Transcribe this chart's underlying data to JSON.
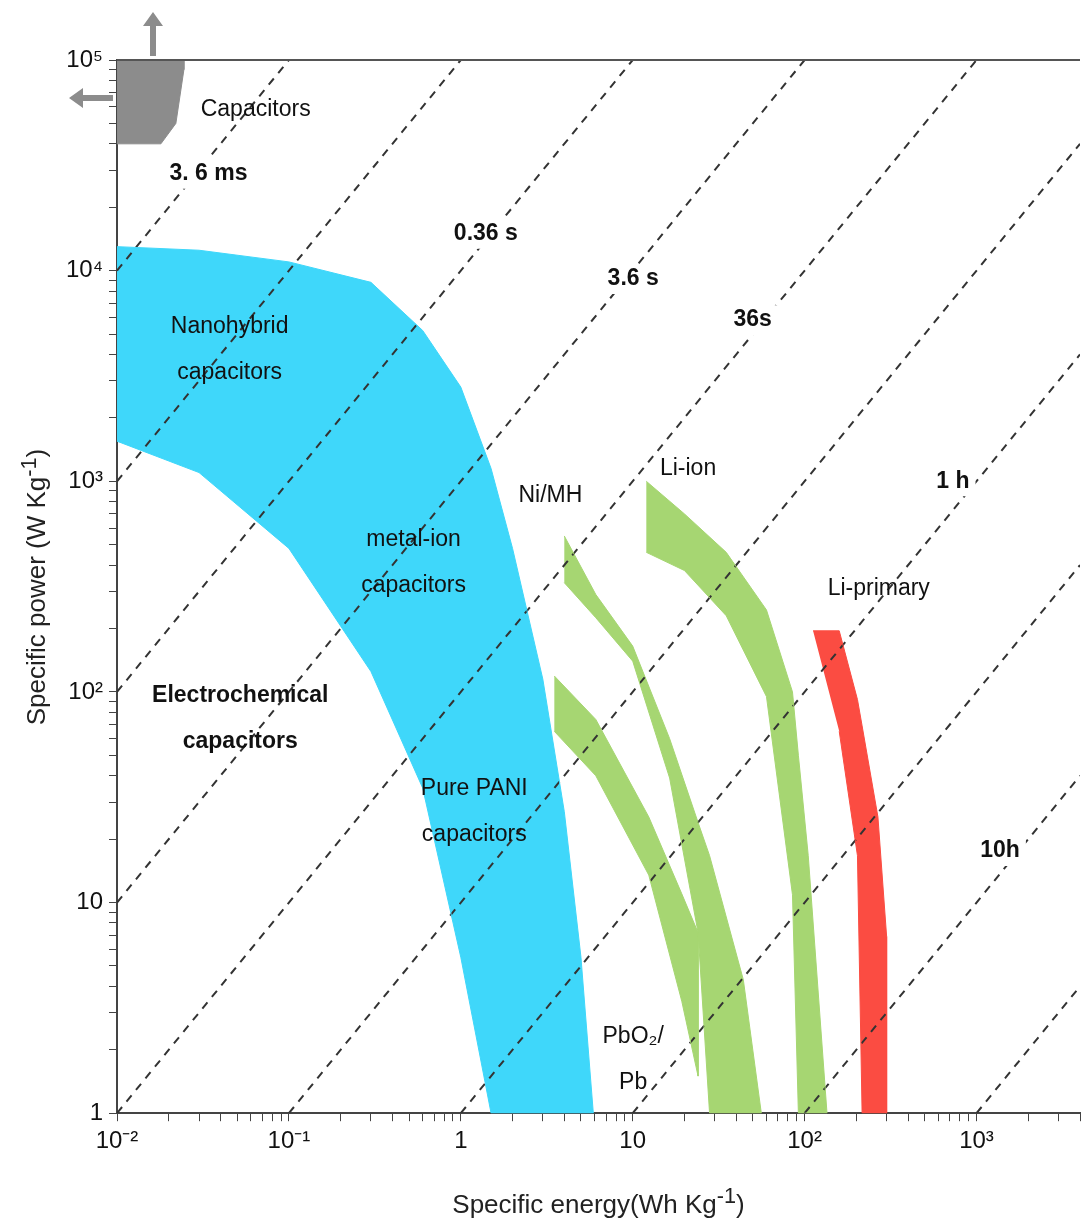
{
  "chart_data": {
    "type": "area",
    "log": "xy",
    "grid": false,
    "legend": false,
    "line_style": "dashed",
    "xlabel": "Specific energy(Wh Kg$^{-1}$)",
    "ylabel": "Specific  power (W Kg$^{-1}$)",
    "xlim": [
      0.01,
      4000
    ],
    "ylim": [
      1,
      100000
    ],
    "xticks": [
      {
        "value": 0.01,
        "label": "10⁻²"
      },
      {
        "value": 0.02,
        "label": null
      },
      {
        "value": 0.03,
        "label": null
      },
      {
        "value": 0.04,
        "label": null
      },
      {
        "value": 0.05,
        "label": null
      },
      {
        "value": 0.06,
        "label": null
      },
      {
        "value": 0.07,
        "label": null
      },
      {
        "value": 0.08,
        "label": null
      },
      {
        "value": 0.09,
        "label": null
      },
      {
        "value": 0.1,
        "label": "10⁻¹"
      },
      {
        "value": 0.2,
        "label": null
      },
      {
        "value": 0.3,
        "label": null
      },
      {
        "value": 0.4,
        "label": null
      },
      {
        "value": 0.5,
        "label": null
      },
      {
        "value": 0.6,
        "label": null
      },
      {
        "value": 0.7,
        "label": null
      },
      {
        "value": 0.8,
        "label": null
      },
      {
        "value": 0.9,
        "label": null
      },
      1,
      {
        "value": 2,
        "label": null
      },
      {
        "value": 3,
        "label": null
      },
      {
        "value": 4,
        "label": null
      },
      {
        "value": 5,
        "label": null
      },
      {
        "value": 6,
        "label": null
      },
      {
        "value": 7,
        "label": null
      },
      {
        "value": 8,
        "label": null
      },
      {
        "value": 9,
        "label": null
      },
      10,
      {
        "value": 20,
        "label": null
      },
      {
        "value": 30,
        "label": null
      },
      {
        "value": 40,
        "label": null
      },
      {
        "value": 50,
        "label": null
      },
      {
        "value": 60,
        "label": null
      },
      {
        "value": 70,
        "label": null
      },
      {
        "value": 80,
        "label": null
      },
      {
        "value": 90,
        "label": null
      },
      {
        "value": 100,
        "label": "10²"
      },
      {
        "value": 200,
        "label": null
      },
      {
        "value": 300,
        "label": null
      },
      {
        "value": 400,
        "label": null
      },
      {
        "value": 500,
        "label": null
      },
      {
        "value": 600,
        "label": null
      },
      {
        "value": 700,
        "label": null
      },
      {
        "value": 800,
        "label": null
      },
      {
        "value": 900,
        "label": null
      },
      {
        "value": 1000,
        "label": "10³"
      },
      {
        "value": 2000,
        "label": null
      },
      {
        "value": 3000,
        "label": null
      },
      {
        "value": 4000,
        "label": null
      }
    ],
    "yticks": [
      1,
      {
        "value": 2,
        "label": null
      },
      {
        "value": 3,
        "label": null
      },
      {
        "value": 4,
        "label": null
      },
      {
        "value": 5,
        "label": null
      },
      {
        "value": 6,
        "label": null
      },
      {
        "value": 7,
        "label": null
      },
      {
        "value": 8,
        "label": null
      },
      {
        "value": 9,
        "label": null
      },
      10,
      {
        "value": 20,
        "label": null
      },
      {
        "value": 30,
        "label": null
      },
      {
        "value": 40,
        "label": null
      },
      {
        "value": 50,
        "label": null
      },
      {
        "value": 60,
        "label": null
      },
      {
        "value": 70,
        "label": null
      },
      {
        "value": 80,
        "label": null
      },
      {
        "value": 90,
        "label": null
      },
      {
        "value": 100,
        "label": "10²"
      },
      {
        "value": 200,
        "label": null
      },
      {
        "value": 300,
        "label": null
      },
      {
        "value": 400,
        "label": null
      },
      {
        "value": 500,
        "label": null
      },
      {
        "value": 600,
        "label": null
      },
      {
        "value": 700,
        "label": null
      },
      {
        "value": 800,
        "label": null
      },
      {
        "value": 900,
        "label": null
      },
      {
        "value": 1000,
        "label": "10³"
      },
      {
        "value": 2000,
        "label": null
      },
      {
        "value": 3000,
        "label": null
      },
      {
        "value": 4000,
        "label": null
      },
      {
        "value": 5000,
        "label": null
      },
      {
        "value": 6000,
        "label": null
      },
      {
        "value": 7000,
        "label": null
      },
      {
        "value": 8000,
        "label": null
      },
      {
        "value": 9000,
        "label": null
      },
      {
        "value": 10000,
        "label": "10⁴"
      },
      {
        "value": 20000,
        "label": null
      },
      {
        "value": 30000,
        "label": null
      },
      {
        "value": 40000,
        "label": null
      },
      {
        "value": 50000,
        "label": null
      },
      {
        "value": 60000,
        "label": null
      },
      {
        "value": 70000,
        "label": null
      },
      {
        "value": 80000,
        "label": null
      },
      {
        "value": 90000,
        "label": null
      },
      {
        "value": 100000,
        "label": "10⁵"
      }
    ],
    "series": [
      {
        "color": "#8c8c8c",
        "x": [
          0.01,
          0.0245,
          0.0245,
          0.022,
          0.018,
          0.01
        ],
        "values": [
          100000,
          100000,
          90000,
          50000,
          40000,
          40000
        ]
      },
      {
        "color": "#3fd7fa",
        "x": [
          0.01,
          0.03,
          0.1,
          0.3,
          0.6,
          1,
          1.5,
          2,
          3,
          4,
          5,
          5.9,
          1.5,
          1,
          0.6,
          0.3,
          0.1,
          0.03,
          0.01
        ],
        "values": [
          13000,
          12500,
          11000,
          8800,
          5200,
          2800,
          1150,
          480,
          115,
          27,
          5.5,
          1,
          1,
          5.5,
          35,
          125,
          480,
          1100,
          1550
        ]
      },
      {
        "color": "#a6d672",
        "x": [
          4,
          6.1,
          10,
          16.4,
          24,
          28,
          44,
          56,
          28,
          24,
          16.4,
          10,
          6.1,
          4
        ],
        "values": [
          550,
          290,
          165,
          60,
          24,
          16.7,
          4.3,
          1,
          1,
          7.2,
          39,
          140,
          225,
          330
        ]
      },
      {
        "color": "#a6d672",
        "x": [
          3.5,
          6.1,
          12.4,
          19.3,
          24,
          24,
          19.3,
          12.4,
          6.1,
          3.5
        ],
        "values": [
          119,
          74,
          25.5,
          11,
          7.2,
          1.5,
          3.4,
          13.5,
          40,
          65
        ]
      },
      {
        "color": "#a6d672",
        "x": [
          12,
          20,
          35,
          60,
          85,
          92,
          105,
          135,
          92,
          85,
          60,
          35,
          20,
          12
        ],
        "values": [
          1000,
          700,
          460,
          245,
          100,
          50,
          16.7,
          1,
          1,
          10.9,
          95,
          230,
          377,
          460
        ]
      },
      {
        "color": "#fb4c42",
        "x": [
          112,
          159,
          203,
          216,
          267,
          300,
          300,
          216,
          203,
          159
        ],
        "values": [
          195,
          195,
          92,
          69,
          25.5,
          6.9,
          1,
          1,
          16.7,
          65
        ]
      },
      {
        "type": "line",
        "color": "#333333",
        "x": [
          0.01,
          0.1
        ],
        "values": [
          10000,
          100000
        ]
      },
      {
        "type": "line",
        "color": "#333333",
        "x": [
          0.01,
          1
        ],
        "values": [
          1000,
          100000
        ]
      },
      {
        "type": "line",
        "color": "#333333",
        "x": [
          0.01,
          10
        ],
        "values": [
          100,
          100000
        ]
      },
      {
        "type": "line",
        "color": "#333333",
        "x": [
          0.01,
          100
        ],
        "values": [
          10,
          100000
        ]
      },
      {
        "type": "line",
        "color": "#333333",
        "x": [
          0.01,
          1000
        ],
        "values": [
          1,
          100000
        ]
      },
      {
        "type": "line",
        "color": "#333333",
        "x": [
          0.1,
          4000
        ],
        "values": [
          1,
          40000
        ]
      },
      {
        "type": "line",
        "color": "#333333",
        "x": [
          1,
          4000
        ],
        "values": [
          1,
          4000
        ]
      },
      {
        "type": "line",
        "color": "#333333",
        "x": [
          10,
          4000
        ],
        "values": [
          1,
          400
        ]
      },
      {
        "type": "line",
        "color": "#333333",
        "x": [
          100,
          4000
        ],
        "values": [
          1,
          40
        ]
      },
      {
        "type": "line",
        "color": "#333333",
        "x": [
          1000,
          4000
        ],
        "values": [
          1,
          4
        ]
      }
    ],
    "annotations": [
      "Capacitors",
      "3. 6 ms",
      "0.36 s",
      "3.6 s",
      "36s",
      "1 h",
      "10h",
      "Nanohybrid\ncapacitors",
      "Ni/MH",
      "Li-ion",
      "metal-ion\ncapacitors",
      "Li-primary",
      "Electrochemical\ncapacitors",
      "Pure PANI\ncapacitors",
      "PbO₂/\nPb"
    ]
  }
}
